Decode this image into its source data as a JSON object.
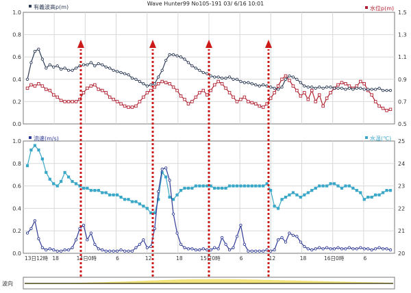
{
  "window": {
    "title": "Wave Hunter99 No105-191 03/ 6/16 10:01"
  },
  "colors": {
    "wave_line": "#2c3a55",
    "tide_line": "#b02030",
    "current_line": "#2e3a95",
    "temp_line": "#3aa7c8",
    "arrow": "#cc1a1a",
    "grid": "#d8d8d8",
    "strip_fill": "#f2e27a"
  },
  "chart_data": [
    {
      "type": "line",
      "title": "",
      "left_axis": {
        "label": "有義波高p(m)",
        "ylim": [
          0,
          1
        ],
        "ticks": [
          "0.0",
          "0.2",
          "0.4",
          "0.6",
          "0.8",
          "1.0"
        ]
      },
      "right_axis": {
        "label": "水位p(m)",
        "ylim": [
          0.5,
          1.5
        ],
        "ticks": [
          "0.5",
          "0.7",
          "0.9",
          "1.1",
          "1.3",
          "1.5"
        ]
      },
      "x": [
        0,
        1,
        2,
        3,
        4,
        5,
        6,
        7,
        8,
        9,
        10,
        11,
        12,
        13,
        14,
        15,
        16,
        17,
        18,
        19,
        20,
        21,
        22,
        23,
        24,
        25,
        26,
        27,
        28,
        29,
        30,
        31,
        32,
        33,
        34,
        35,
        36,
        37,
        38,
        39,
        40,
        41,
        42,
        43,
        44,
        45,
        46,
        47,
        48,
        49,
        50,
        51,
        52,
        53,
        54,
        55,
        56,
        57,
        58,
        59,
        60,
        61,
        62,
        63,
        64,
        65,
        66,
        67,
        68,
        69,
        70,
        71,
        72,
        73,
        74,
        75,
        76,
        77,
        78,
        79,
        80,
        81,
        82,
        83,
        84,
        85,
        86,
        87,
        88,
        89,
        90,
        91,
        92,
        93,
        94,
        95,
        96,
        97
      ],
      "series": [
        {
          "name": "有義波高p(m)",
          "axis": "left",
          "values": [
            0.4,
            0.55,
            0.65,
            0.67,
            0.58,
            0.5,
            0.53,
            0.51,
            0.52,
            0.49,
            0.5,
            0.48,
            0.48,
            0.5,
            0.52,
            0.53,
            0.53,
            0.55,
            0.52,
            0.54,
            0.53,
            0.51,
            0.5,
            0.48,
            0.47,
            0.46,
            0.45,
            0.44,
            0.41,
            0.4,
            0.38,
            0.36,
            0.34,
            0.35,
            0.36,
            0.42,
            0.48,
            0.57,
            0.62,
            0.62,
            0.61,
            0.6,
            0.58,
            0.55,
            0.52,
            0.5,
            0.48,
            0.46,
            0.45,
            0.43,
            0.42,
            0.42,
            0.41,
            0.41,
            0.42,
            0.4,
            0.4,
            0.38,
            0.37,
            0.37,
            0.36,
            0.35,
            0.34,
            0.35,
            0.34,
            0.33,
            0.32,
            0.31,
            0.33,
            0.4,
            0.43,
            0.42,
            0.4,
            0.37,
            0.34,
            0.33,
            0.33,
            0.32,
            0.33,
            0.32,
            0.33,
            0.33,
            0.32,
            0.32,
            0.32,
            0.31,
            0.32,
            0.31,
            0.32,
            0.32,
            0.31,
            0.31,
            0.31,
            0.31,
            0.32,
            0.3,
            0.3,
            0.3
          ]
        },
        {
          "name": "水位p(m)",
          "axis": "right",
          "values": [
            0.82,
            0.85,
            0.84,
            0.86,
            0.84,
            0.81,
            0.8,
            0.76,
            0.74,
            0.71,
            0.7,
            0.7,
            0.7,
            0.7,
            0.72,
            0.78,
            0.82,
            0.84,
            0.85,
            0.81,
            0.8,
            0.78,
            0.74,
            0.72,
            0.7,
            0.68,
            0.66,
            0.65,
            0.65,
            0.66,
            0.7,
            0.74,
            0.78,
            0.8,
            0.83,
            0.86,
            0.88,
            0.87,
            0.86,
            0.83,
            0.8,
            0.75,
            0.72,
            0.68,
            0.7,
            0.74,
            0.78,
            0.8,
            0.76,
            0.8,
            0.85,
            0.88,
            0.86,
            0.82,
            0.78,
            0.74,
            0.7,
            0.72,
            0.74,
            0.7,
            0.69,
            0.68,
            0.66,
            0.65,
            0.68,
            0.73,
            0.78,
            0.84,
            0.9,
            0.93,
            0.89,
            0.84,
            0.8,
            0.75,
            0.78,
            0.72,
            0.8,
            0.7,
            0.76,
            0.66,
            0.73,
            0.78,
            0.82,
            0.85,
            0.87,
            0.86,
            0.84,
            0.82,
            0.84,
            0.88,
            0.86,
            0.8,
            0.76,
            0.7,
            0.66,
            0.64,
            0.62,
            0.63
          ]
        }
      ],
      "annotations": [
        "up-arrow",
        "up-arrow",
        "up-arrow",
        "up-arrow"
      ]
    },
    {
      "type": "line",
      "title": "",
      "left_axis": {
        "label": "流速(m/s)",
        "ylim": [
          0,
          1
        ],
        "ticks": [
          "0.0",
          "0.2",
          "0.4",
          "0.6",
          "0.8",
          "1.0"
        ]
      },
      "right_axis": {
        "label": "水温(℃)",
        "ylim": [
          20,
          25
        ],
        "ticks": [
          "20",
          "21",
          "22",
          "23",
          "24",
          "25"
        ]
      },
      "x": [
        0,
        1,
        2,
        3,
        4,
        5,
        6,
        7,
        8,
        9,
        10,
        11,
        12,
        13,
        14,
        15,
        16,
        17,
        18,
        19,
        20,
        21,
        22,
        23,
        24,
        25,
        26,
        27,
        28,
        29,
        30,
        31,
        32,
        33,
        34,
        35,
        36,
        37,
        38,
        39,
        40,
        41,
        42,
        43,
        44,
        45,
        46,
        47,
        48,
        49,
        50,
        51,
        52,
        53,
        54,
        55,
        56,
        57,
        58,
        59,
        60,
        61,
        62,
        63,
        64,
        65,
        66,
        67,
        68,
        69,
        70,
        71,
        72,
        73,
        74,
        75,
        76,
        77,
        78,
        79,
        80,
        81,
        82,
        83,
        84,
        85,
        86,
        87,
        88,
        89,
        90,
        91,
        92,
        93,
        94,
        95,
        96,
        97
      ],
      "series": [
        {
          "name": "流速(m/s)",
          "axis": "left",
          "values": [
            0.18,
            0.22,
            0.29,
            0.13,
            0.05,
            0.03,
            0.04,
            0.03,
            0.02,
            0.02,
            0.03,
            0.03,
            0.05,
            0.12,
            0.22,
            0.25,
            0.12,
            0.18,
            0.08,
            0.04,
            0.03,
            0.02,
            0.02,
            0.02,
            0.02,
            0.03,
            0.02,
            0.02,
            0.02,
            0.05,
            0.08,
            0.12,
            0.05,
            0.06,
            0.22,
            0.55,
            0.75,
            0.76,
            0.65,
            0.35,
            0.18,
            0.08,
            0.05,
            0.04,
            0.04,
            0.03,
            0.03,
            0.04,
            0.03,
            0.03,
            0.05,
            0.04,
            0.14,
            0.08,
            0.03,
            0.05,
            0.15,
            0.25,
            0.08,
            0.02,
            0.02,
            0.02,
            0.02,
            0.02,
            0.03,
            0.02,
            0.03,
            0.12,
            0.14,
            0.1,
            0.18,
            0.16,
            0.15,
            0.1,
            0.06,
            0.04,
            0.03,
            0.04,
            0.05,
            0.04,
            0.05,
            0.04,
            0.04,
            0.05,
            0.04,
            0.04,
            0.05,
            0.04,
            0.04,
            0.05,
            0.04,
            0.04,
            0.03,
            0.04,
            0.05,
            0.04,
            0.04,
            0.03
          ]
        },
        {
          "name": "水温(℃)",
          "axis": "right",
          "values": [
            23.9,
            24.6,
            24.8,
            24.6,
            24.2,
            23.6,
            23.3,
            23.1,
            23.0,
            23.2,
            23.6,
            23.4,
            23.2,
            23.1,
            23.0,
            22.9,
            22.9,
            22.8,
            22.8,
            22.8,
            22.7,
            22.7,
            22.6,
            22.6,
            22.6,
            22.5,
            22.4,
            22.4,
            22.3,
            22.3,
            22.2,
            22.1,
            22.0,
            21.8,
            21.8,
            22.4,
            23.6,
            23.4,
            22.5,
            22.4,
            22.6,
            22.8,
            22.9,
            22.9,
            22.9,
            23.0,
            23.0,
            23.0,
            23.0,
            23.0,
            22.9,
            22.9,
            22.9,
            22.9,
            23.0,
            23.0,
            23.0,
            23.0,
            23.0,
            23.0,
            23.0,
            23.0,
            23.0,
            23.0,
            23.1,
            22.8,
            22.1,
            22.0,
            22.4,
            22.5,
            22.6,
            22.7,
            22.6,
            22.5,
            22.6,
            22.7,
            22.8,
            22.9,
            23.0,
            23.0,
            23.0,
            23.1,
            23.1,
            23.0,
            22.9,
            23.0,
            23.0,
            22.9,
            22.8,
            22.7,
            22.4,
            22.5,
            22.5,
            22.6,
            22.6,
            22.7,
            22.8,
            22.8
          ]
        }
      ],
      "x_tick_labels": [
        "13日12時",
        "18",
        "14日0時",
        "6",
        "12",
        "18",
        "15日0時",
        "6",
        "12",
        "18",
        "16日0時",
        "6"
      ],
      "annotations": [
        "up-arrow",
        "up-arrow",
        "up-arrow",
        "up-arrow"
      ]
    }
  ],
  "strip": {
    "label": "波向"
  }
}
